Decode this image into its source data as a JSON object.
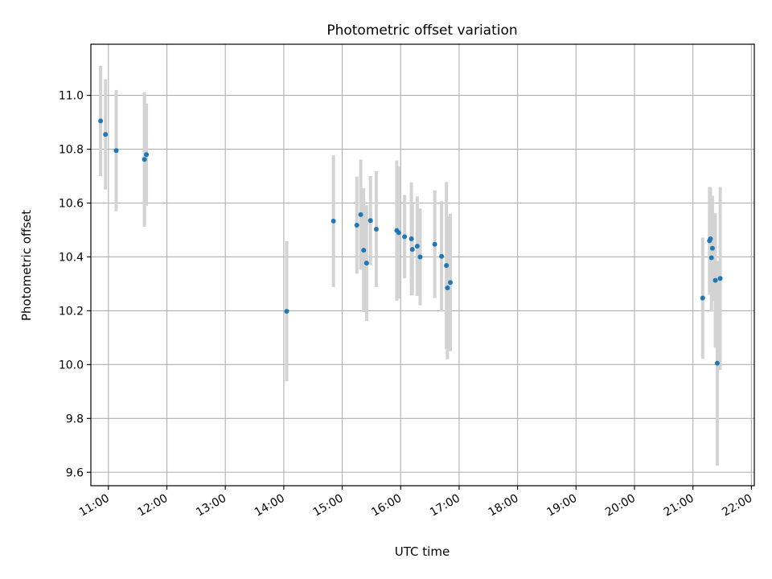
{
  "chart_data": {
    "type": "scatter",
    "title": "Photometric offset variation",
    "xlabel": "UTC time",
    "ylabel": "Photometric offset",
    "x_type": "time",
    "x_ticks": [
      "11:00",
      "12:00",
      "13:00",
      "14:00",
      "15:00",
      "16:00",
      "17:00",
      "18:00",
      "19:00",
      "20:00",
      "21:00",
      "22:00"
    ],
    "y_ticks": [
      "9.6",
      "9.8",
      "10.0",
      "10.2",
      "10.4",
      "10.6",
      "10.8",
      "11.0"
    ],
    "xlim": [
      "10:42",
      "22:03"
    ],
    "ylim": [
      9.55,
      11.19
    ],
    "grid": true,
    "colors": {
      "points": "#1f77b4",
      "errorbars": "#d3d3d3",
      "grid": "#b0b0b0"
    },
    "series": [
      {
        "points": [
          {
            "x": "10:52",
            "y": 10.905,
            "yerr": 0.205
          },
          {
            "x": "10:57",
            "y": 10.855,
            "yerr": 0.205
          },
          {
            "x": "11:08",
            "y": 10.795,
            "yerr": 0.225
          },
          {
            "x": "11:37",
            "y": 10.762,
            "yerr": 0.25
          },
          {
            "x": "11:39",
            "y": 10.78,
            "yerr": 0.19
          },
          {
            "x": "14:03",
            "y": 10.198,
            "yerr": 0.26
          },
          {
            "x": "14:51",
            "y": 10.533,
            "yerr": 0.245
          },
          {
            "x": "15:15",
            "y": 10.518,
            "yerr": 0.18
          },
          {
            "x": "15:19",
            "y": 10.557,
            "yerr": 0.205
          },
          {
            "x": "15:22",
            "y": 10.425,
            "yerr": 0.23
          },
          {
            "x": "15:25",
            "y": 10.377,
            "yerr": 0.215
          },
          {
            "x": "15:29",
            "y": 10.535,
            "yerr": 0.165
          },
          {
            "x": "15:35",
            "y": 10.503,
            "yerr": 0.215
          },
          {
            "x": "15:56",
            "y": 10.498,
            "yerr": 0.26
          },
          {
            "x": "15:58",
            "y": 10.49,
            "yerr": 0.245
          },
          {
            "x": "16:04",
            "y": 10.475,
            "yerr": 0.155
          },
          {
            "x": "16:11",
            "y": 10.467,
            "yerr": 0.21
          },
          {
            "x": "16:12",
            "y": 10.428,
            "yerr": 0.17
          },
          {
            "x": "16:17",
            "y": 10.44,
            "yerr": 0.185
          },
          {
            "x": "16:20",
            "y": 10.4,
            "yerr": 0.18
          },
          {
            "x": "16:35",
            "y": 10.447,
            "yerr": 0.2
          },
          {
            "x": "16:42",
            "y": 10.402,
            "yerr": 0.205
          },
          {
            "x": "16:47",
            "y": 10.368,
            "yerr": 0.31
          },
          {
            "x": "16:48",
            "y": 10.285,
            "yerr": 0.265
          },
          {
            "x": "16:51",
            "y": 10.305,
            "yerr": 0.255
          },
          {
            "x": "21:10",
            "y": 10.247,
            "yerr": 0.225
          },
          {
            "x": "21:17",
            "y": 10.46,
            "yerr": 0.2
          },
          {
            "x": "21:18",
            "y": 10.467,
            "yerr": 0.19
          },
          {
            "x": "21:19",
            "y": 10.397,
            "yerr": 0.2
          },
          {
            "x": "21:20",
            "y": 10.432,
            "yerr": 0.195
          },
          {
            "x": "21:23",
            "y": 10.313,
            "yerr": 0.25
          },
          {
            "x": "21:25",
            "y": 10.005,
            "yerr": 0.38
          },
          {
            "x": "21:28",
            "y": 10.32,
            "yerr": 0.34
          }
        ]
      }
    ]
  }
}
